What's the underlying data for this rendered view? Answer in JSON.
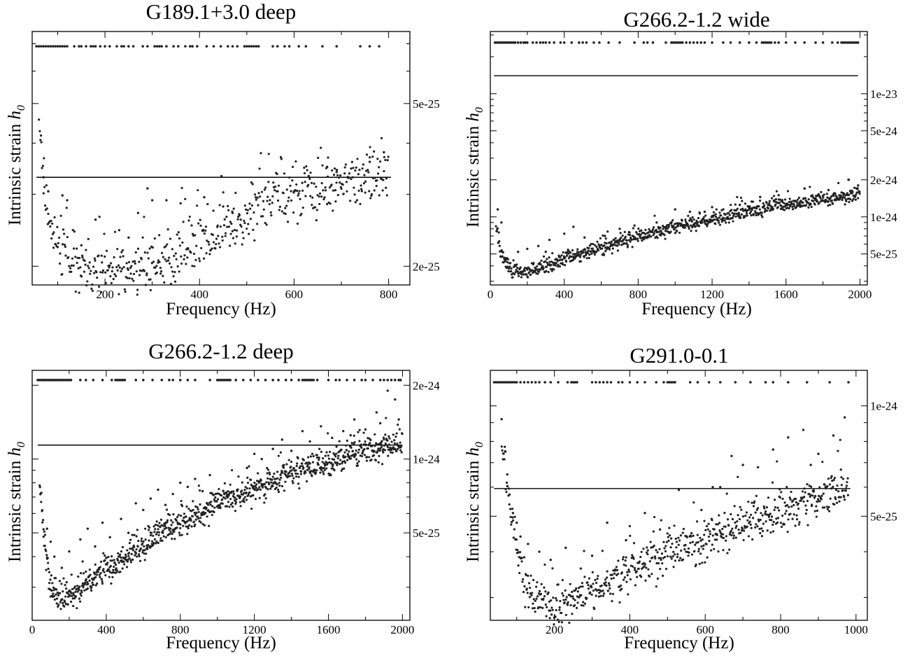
{
  "figure": {
    "ylabel_text": "Intrinsic strain ",
    "ylabel_var": "h",
    "ylabel_sub": "0",
    "xlabel": "Frequency (Hz)"
  },
  "chart_data": [
    {
      "type": "scatter",
      "title": "G189.1+3.0 deep",
      "xlabel": "Frequency (Hz)",
      "ylabel": "Intrinsic strain h0",
      "xlim": [
        46,
        845
      ],
      "ylim": [
        1.8e-25,
        7.5e-25
      ],
      "yscale": "log",
      "x_ticks": [
        200,
        400,
        600,
        800
      ],
      "y_ticks": [
        {
          "value": 2e-25,
          "label": "2e-25"
        },
        {
          "value": 5e-25,
          "label": "5e-25"
        }
      ],
      "y_axis_side": "right",
      "threshold_line": {
        "value": 3.3e-25,
        "x_range": [
          55,
          805
        ]
      },
      "veto_row": {
        "y": 6.9e-25,
        "x": [
          55,
          60,
          65,
          70,
          75,
          80,
          85,
          90,
          95,
          100,
          105,
          110,
          115,
          120,
          135,
          145,
          150,
          160,
          170,
          175,
          180,
          190,
          200,
          210,
          225,
          235,
          240,
          250,
          260,
          280,
          290,
          305,
          310,
          315,
          320,
          330,
          345,
          355,
          370,
          380,
          385,
          395,
          415,
          430,
          445,
          460,
          470,
          480,
          495,
          500,
          505,
          510,
          515,
          520,
          525,
          555,
          565,
          580,
          590,
          610,
          625,
          660,
          690,
          740,
          760,
          780
        ]
      },
      "trend": [
        [
          60,
          5.2e-25
        ],
        [
          70,
          3.2e-25
        ],
        [
          80,
          2.6e-25
        ],
        [
          100,
          2.25e-25
        ],
        [
          130,
          2.02e-25
        ],
        [
          170,
          1.93e-25
        ],
        [
          210,
          1.92e-25
        ],
        [
          260,
          1.97e-25
        ],
        [
          320,
          2.08e-25
        ],
        [
          380,
          2.22e-25
        ],
        [
          440,
          2.42e-25
        ],
        [
          490,
          2.6e-25
        ],
        [
          520,
          2.75e-25
        ],
        [
          560,
          2.87e-25
        ],
        [
          620,
          3e-25
        ],
        [
          680,
          3.12e-25
        ],
        [
          740,
          3.25e-25
        ],
        [
          800,
          3.38e-25
        ]
      ],
      "outliers": [
        [
          70,
          3.3e-25
        ],
        [
          80,
          3.05e-25
        ],
        [
          110,
          2.98e-25
        ],
        [
          120,
          2.9e-25
        ],
        [
          290,
          3.1e-25
        ],
        [
          330,
          2.9e-25
        ],
        [
          270,
          2.7e-25
        ],
        [
          300,
          2.9e-25
        ],
        [
          360,
          2.85e-25
        ],
        [
          410,
          2.95e-25
        ],
        [
          450,
          2.8e-25
        ],
        [
          180,
          2.6e-25
        ],
        [
          150,
          2.25e-25
        ],
        [
          250,
          2.35e-25
        ],
        [
          600,
          3.05e-25
        ],
        [
          670,
          3.5e-25
        ],
        [
          690,
          3.4e-25
        ],
        [
          760,
          3.6e-25
        ],
        [
          790,
          3.8e-25
        ],
        [
          470,
          2.7e-25
        ],
        [
          230,
          2.45e-25
        ]
      ],
      "n_points": 560,
      "scatter_spread": 0.04,
      "seed": 11
    },
    {
      "type": "scatter",
      "title": "G266.2-1.2 wide",
      "xlabel": "Frequency (Hz)",
      "ylabel": "Intrinsic strain h0",
      "xlim": [
        0,
        2040
      ],
      "ylim": [
        2.8e-25,
        3.2e-23
      ],
      "yscale": "log",
      "x_ticks": [
        0,
        400,
        800,
        1200,
        1600,
        2000
      ],
      "y_ticks": [
        {
          "value": 5e-25,
          "label": "5e-25"
        },
        {
          "value": 1e-24,
          "label": "1e-24"
        },
        {
          "value": 2e-24,
          "label": "2e-24"
        },
        {
          "value": 5e-24,
          "label": "5e-24"
        },
        {
          "value": 1e-23,
          "label": "1e-23"
        }
      ],
      "y_axis_side": "right",
      "threshold_line": {
        "value": 1.4e-23,
        "x_range": [
          20,
          1990
        ]
      },
      "veto_row": {
        "y": 2.6e-23,
        "x": [
          25,
          35,
          45,
          55,
          65,
          75,
          85,
          95,
          105,
          115,
          125,
          135,
          150,
          165,
          180,
          190,
          200,
          230,
          250,
          270,
          285,
          300,
          320,
          345,
          380,
          400,
          440,
          480,
          500,
          520,
          560,
          590,
          640,
          700,
          780,
          830,
          850,
          880,
          950,
          980,
          990,
          1000,
          1010,
          1020,
          1030,
          1040,
          1060,
          1080,
          1100,
          1120,
          1140,
          1160,
          1200,
          1260,
          1300,
          1350,
          1400,
          1440,
          1470,
          1480,
          1490,
          1500,
          1510,
          1520,
          1540,
          1560,
          1600,
          1650,
          1700,
          1760,
          1800,
          1850,
          1880,
          1900,
          1910,
          1920,
          1930,
          1940,
          1950,
          1960,
          1970,
          1980,
          1990
        ]
      },
      "trend": [
        [
          30,
          8.5e-25
        ],
        [
          60,
          5e-25
        ],
        [
          100,
          3.6e-25
        ],
        [
          200,
          3.6e-25
        ],
        [
          300,
          4e-25
        ],
        [
          400,
          4.5e-25
        ],
        [
          500,
          5e-25
        ],
        [
          600,
          5.6e-25
        ],
        [
          700,
          6.2e-25
        ],
        [
          800,
          6.8e-25
        ],
        [
          900,
          7.5e-25
        ],
        [
          1000,
          8.2e-25
        ],
        [
          1100,
          8.9e-25
        ],
        [
          1200,
          9.7e-25
        ],
        [
          1300,
          1.04e-24
        ],
        [
          1400,
          1.11e-24
        ],
        [
          1500,
          1.18e-24
        ],
        [
          1600,
          1.25e-24
        ],
        [
          1700,
          1.32e-24
        ],
        [
          1800,
          1.38e-24
        ],
        [
          1900,
          1.44e-24
        ],
        [
          2000,
          1.5e-24
        ]
      ],
      "outliers": [
        [
          40,
          1.15e-24
        ],
        [
          60,
          9e-25
        ],
        [
          150,
          5.2e-25
        ],
        [
          200,
          5.5e-25
        ],
        [
          260,
          5.8e-25
        ],
        [
          320,
          6.5e-25
        ],
        [
          400,
          7.3e-25
        ],
        [
          450,
          8.3e-25
        ],
        [
          510,
          6.8e-25
        ],
        [
          300,
          5.2e-25
        ],
        [
          620,
          7e-25
        ],
        [
          700,
          8e-25
        ],
        [
          780,
          8.5e-25
        ],
        [
          900,
          9e-25
        ],
        [
          1000,
          1.15e-24
        ],
        [
          1080,
          1.1e-24
        ],
        [
          1200,
          1.2e-24
        ],
        [
          1350,
          1.25e-24
        ],
        [
          1460,
          1.45e-24
        ],
        [
          1560,
          1.5e-24
        ],
        [
          1700,
          1.7e-24
        ],
        [
          1830,
          1.65e-24
        ],
        [
          1940,
          2e-24
        ],
        [
          1990,
          1.8e-24
        ],
        [
          1160,
          1.1e-24
        ]
      ],
      "n_points": 900,
      "scatter_spread": 0.035,
      "seed": 23
    },
    {
      "type": "scatter",
      "title": "G266.2-1.2 deep",
      "xlabel": "Frequency (Hz)",
      "ylabel": "Intrinsic strain h0",
      "xlim": [
        0,
        2040
      ],
      "ylim": [
        2.2e-25,
        2.3e-24
      ],
      "yscale": "log",
      "x_ticks": [
        0,
        400,
        800,
        1200,
        1600,
        2000
      ],
      "y_ticks": [
        {
          "value": 5e-25,
          "label": "5e-25"
        },
        {
          "value": 1e-24,
          "label": "1e-24"
        },
        {
          "value": 2e-24,
          "label": "2e-24"
        }
      ],
      "y_axis_side": "right",
      "threshold_line": {
        "value": 1.14e-24,
        "x_range": [
          30,
          2000
        ]
      },
      "veto_row": {
        "y": 2.1e-24,
        "x": [
          30,
          40,
          50,
          60,
          70,
          80,
          90,
          100,
          110,
          120,
          130,
          140,
          150,
          160,
          170,
          180,
          190,
          200,
          210,
          260,
          290,
          330,
          380,
          430,
          450,
          460,
          470,
          480,
          490,
          500,
          560,
          600,
          650,
          700,
          740,
          760,
          800,
          840,
          880,
          960,
          1000,
          1010,
          1020,
          1030,
          1040,
          1050,
          1060,
          1070,
          1100,
          1140,
          1180,
          1220,
          1260,
          1300,
          1330,
          1370,
          1400,
          1440,
          1460,
          1470,
          1480,
          1490,
          1500,
          1510,
          1520,
          1540,
          1600,
          1640,
          1660,
          1700,
          1740,
          1780,
          1800,
          1840,
          1880,
          1900,
          1920,
          1940,
          1960,
          1980,
          1990
        ]
      },
      "trend": [
        [
          40,
          8e-25
        ],
        [
          70,
          4.3e-25
        ],
        [
          100,
          3e-25
        ],
        [
          150,
          2.7e-25
        ],
        [
          200,
          2.75e-25
        ],
        [
          300,
          3.1e-25
        ],
        [
          400,
          3.55e-25
        ],
        [
          500,
          4e-25
        ],
        [
          600,
          4.5e-25
        ],
        [
          700,
          5e-25
        ],
        [
          800,
          5.5e-25
        ],
        [
          900,
          6e-25
        ],
        [
          1000,
          6.5e-25
        ],
        [
          1100,
          7.1e-25
        ],
        [
          1200,
          7.6e-25
        ],
        [
          1300,
          8.1e-25
        ],
        [
          1400,
          8.7e-25
        ],
        [
          1500,
          9.2e-25
        ],
        [
          1600,
          9.7e-25
        ],
        [
          1700,
          1.02e-24
        ],
        [
          1800,
          1.07e-24
        ],
        [
          1900,
          1.12e-24
        ],
        [
          2000,
          1.16e-24
        ]
      ],
      "outliers": [
        [
          80,
          5.2e-25
        ],
        [
          100,
          4.6e-25
        ],
        [
          120,
          4e-25
        ],
        [
          160,
          3.6e-25
        ],
        [
          200,
          4.2e-25
        ],
        [
          260,
          4.7e-25
        ],
        [
          300,
          5.2e-25
        ],
        [
          340,
          4.4e-25
        ],
        [
          380,
          5.5e-25
        ],
        [
          420,
          4.8e-25
        ],
        [
          480,
          5.7e-25
        ],
        [
          520,
          5e-25
        ],
        [
          560,
          6.6e-25
        ],
        [
          600,
          6.2e-25
        ],
        [
          640,
          6.9e-25
        ],
        [
          680,
          7.5e-25
        ],
        [
          720,
          6.5e-25
        ],
        [
          760,
          7.2e-25
        ],
        [
          800,
          8e-25
        ],
        [
          840,
          7.7e-25
        ],
        [
          880,
          8.3e-25
        ],
        [
          920,
          7.4e-25
        ],
        [
          960,
          8.6e-25
        ],
        [
          1160,
          9.2e-25
        ],
        [
          1200,
          1.05e-24
        ],
        [
          1240,
          1e-24
        ],
        [
          1300,
          1.1e-24
        ],
        [
          1350,
          1.2e-24
        ],
        [
          1400,
          1.08e-24
        ],
        [
          1460,
          1.3e-24
        ],
        [
          1500,
          1.18e-24
        ],
        [
          1560,
          1.36e-24
        ],
        [
          1620,
          1.22e-24
        ],
        [
          1680,
          1.3e-24
        ],
        [
          1740,
          1.45e-24
        ],
        [
          1800,
          1.32e-24
        ],
        [
          1860,
          1.55e-24
        ],
        [
          1920,
          1.9e-24
        ],
        [
          1960,
          1.75e-24
        ],
        [
          1980,
          1.45e-24
        ],
        [
          1880,
          1.4e-24
        ],
        [
          1720,
          1.25e-24
        ]
      ],
      "n_points": 1000,
      "scatter_spread": 0.035,
      "seed": 37
    },
    {
      "type": "scatter",
      "title": "G291.0-0.1",
      "xlabel": "Frequency (Hz)",
      "ylabel": "Intrinsic strain h0",
      "xlim": [
        30,
        1030
      ],
      "ylim": [
        2.6e-25,
        1.25e-24
      ],
      "yscale": "log",
      "x_ticks": [
        200,
        400,
        600,
        800,
        1000
      ],
      "y_ticks": [
        {
          "value": 5e-25,
          "label": "5e-25"
        },
        {
          "value": 1e-24,
          "label": "1e-24"
        }
      ],
      "y_axis_side": "right",
      "threshold_line": {
        "value": 5.95e-25,
        "x_range": [
          40,
          985
        ]
      },
      "veto_row": {
        "y": 1.16e-24,
        "x": [
          40,
          45,
          50,
          55,
          60,
          65,
          70,
          75,
          80,
          85,
          90,
          95,
          100,
          110,
          120,
          130,
          140,
          150,
          160,
          175,
          190,
          210,
          235,
          245,
          250,
          255,
          260,
          300,
          310,
          320,
          330,
          340,
          350,
          370,
          380,
          400,
          420,
          440,
          470,
          490,
          500,
          505,
          510,
          515,
          520,
          560,
          580,
          610,
          640,
          680,
          720,
          760,
          780,
          820,
          870,
          930,
          980
        ]
      },
      "trend": [
        [
          60,
          8.5e-25
        ],
        [
          80,
          5.5e-25
        ],
        [
          100,
          4e-25
        ],
        [
          120,
          3.2e-25
        ],
        [
          160,
          2.95e-25
        ],
        [
          200,
          2.9e-25
        ],
        [
          260,
          3e-25
        ],
        [
          320,
          3.2e-25
        ],
        [
          380,
          3.45e-25
        ],
        [
          440,
          3.75e-25
        ],
        [
          500,
          3.95e-25
        ],
        [
          540,
          4.15e-25
        ],
        [
          600,
          4.35e-25
        ],
        [
          660,
          4.6e-25
        ],
        [
          720,
          4.85e-25
        ],
        [
          780,
          5.1e-25
        ],
        [
          840,
          5.35e-25
        ],
        [
          900,
          5.6e-25
        ],
        [
          960,
          5.85e-25
        ],
        [
          980,
          6e-25
        ]
      ],
      "outliers": [
        [
          60,
          9.2e-25
        ],
        [
          70,
          7.5e-25
        ],
        [
          75,
          6.5e-25
        ],
        [
          90,
          5.1e-25
        ],
        [
          100,
          4.8e-25
        ],
        [
          110,
          4.4e-25
        ],
        [
          130,
          4.2e-25
        ],
        [
          160,
          4e-25
        ],
        [
          190,
          3.8e-25
        ],
        [
          230,
          4.1e-25
        ],
        [
          270,
          3.6e-25
        ],
        [
          300,
          3.9e-25
        ],
        [
          340,
          4.8e-25
        ],
        [
          390,
          4.3e-25
        ],
        [
          440,
          5.1e-25
        ],
        [
          480,
          4.6e-25
        ],
        [
          530,
          5.9e-25
        ],
        [
          590,
          5.2e-25
        ],
        [
          640,
          6e-25
        ],
        [
          670,
          7.3e-25
        ],
        [
          700,
          6.9e-25
        ],
        [
          740,
          6.8e-25
        ],
        [
          780,
          7.6e-25
        ],
        [
          820,
          8.2e-25
        ],
        [
          860,
          8.6e-25
        ],
        [
          900,
          7.4e-25
        ],
        [
          940,
          8.3e-25
        ],
        [
          970,
          9.3e-25
        ],
        [
          880,
          6.9e-25
        ],
        [
          960,
          6.7e-25
        ],
        [
          620,
          6e-25
        ]
      ],
      "n_points": 700,
      "scatter_spread": 0.035,
      "seed": 53
    }
  ]
}
